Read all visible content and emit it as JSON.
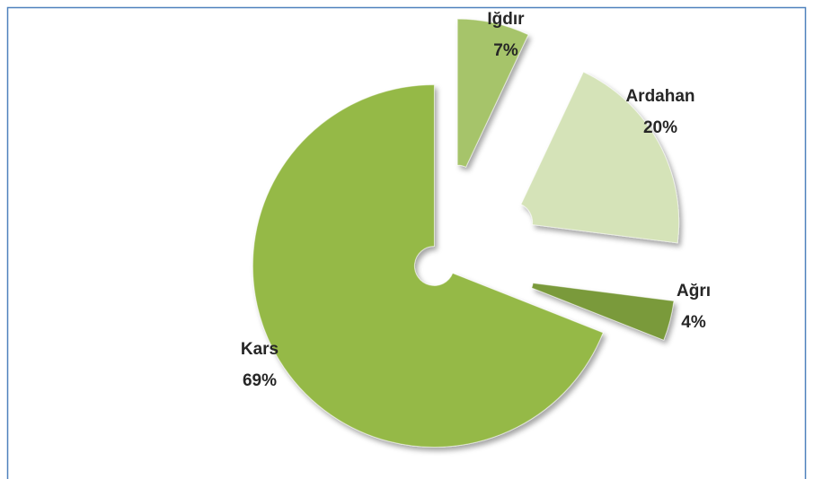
{
  "chart_data": {
    "type": "pie",
    "categories": [
      "Iğdır",
      "Ardahan",
      "Ağrı",
      "Kars"
    ],
    "values": [
      7,
      20,
      4,
      69
    ],
    "value_labels": [
      "7%",
      "20%",
      "4%",
      "69%"
    ],
    "colors": [
      "#a6c46a",
      "#d5e3b8",
      "#7a9a3a",
      "#95b947"
    ]
  }
}
